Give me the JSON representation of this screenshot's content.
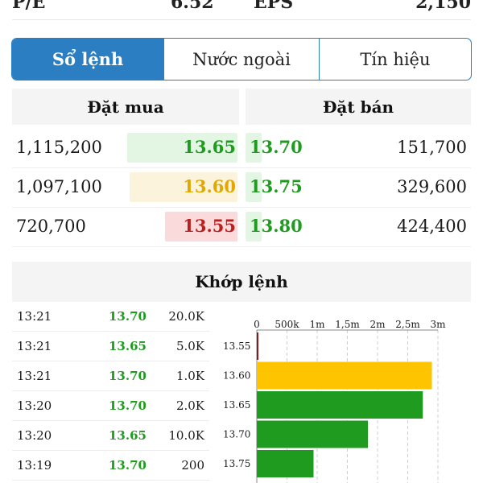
{
  "metrics": [
    {
      "label": "P/E",
      "value": "6.52"
    },
    {
      "label": "EPS",
      "value": "2,150"
    }
  ],
  "tabs": [
    {
      "label": "Sổ lệnh",
      "active": true
    },
    {
      "label": "Nước ngoài",
      "active": false
    },
    {
      "label": "Tín hiệu",
      "active": false
    }
  ],
  "order_book": {
    "buy_title": "Đặt mua",
    "sell_title": "Đặt bán",
    "rows": [
      {
        "buy_volume": "1,115,200",
        "buy_price": "13.65",
        "buy_color": "#1f9b1f",
        "buy_bg": "#e3f5e3",
        "buy_level": 0.49,
        "sell_price": "13.70",
        "sell_volume": "151,700",
        "sell_level": 0.07
      },
      {
        "buy_volume": "1,097,100",
        "buy_price": "13.60",
        "buy_color": "#e0a800",
        "buy_bg": "#fbf3dc",
        "buy_level": 0.48,
        "sell_price": "13.75",
        "sell_volume": "329,600",
        "sell_level": 0.14
      },
      {
        "buy_volume": "720,700",
        "buy_price": "13.55",
        "buy_color": "#b81f1f",
        "buy_bg": "#fadadb",
        "buy_level": 0.32,
        "sell_price": "13.80",
        "sell_volume": "424,400",
        "sell_level": 0.18
      }
    ]
  },
  "matching": {
    "title": "Khớp lệnh",
    "trades": [
      {
        "time": "13:21",
        "price": "13.70",
        "volume": "20.0K"
      },
      {
        "time": "13:21",
        "price": "13.65",
        "volume": "5.0K"
      },
      {
        "time": "13:21",
        "price": "13.70",
        "volume": "1.0K"
      },
      {
        "time": "13:20",
        "price": "13.70",
        "volume": "2.0K"
      },
      {
        "time": "13:20",
        "price": "13.65",
        "volume": "10.0K"
      },
      {
        "time": "13:19",
        "price": "13.70",
        "volume": "200"
      }
    ]
  },
  "chart_data": {
    "type": "bar",
    "orientation": "horizontal",
    "categories": [
      "13.55",
      "13.60",
      "13.65",
      "13.70",
      "13.75"
    ],
    "values": [
      20000,
      2900000,
      2750000,
      1840000,
      940000
    ],
    "colors": [
      "#8b1a1a",
      "#ffc400",
      "#1f9b1f",
      "#1f9b1f",
      "#1f9b1f"
    ],
    "x_ticks": [
      "0",
      "500k",
      "1m",
      "1,5m",
      "2m",
      "2,5m",
      "3m"
    ],
    "xlim": [
      0,
      3000000
    ],
    "grid": "vertical dashed"
  }
}
